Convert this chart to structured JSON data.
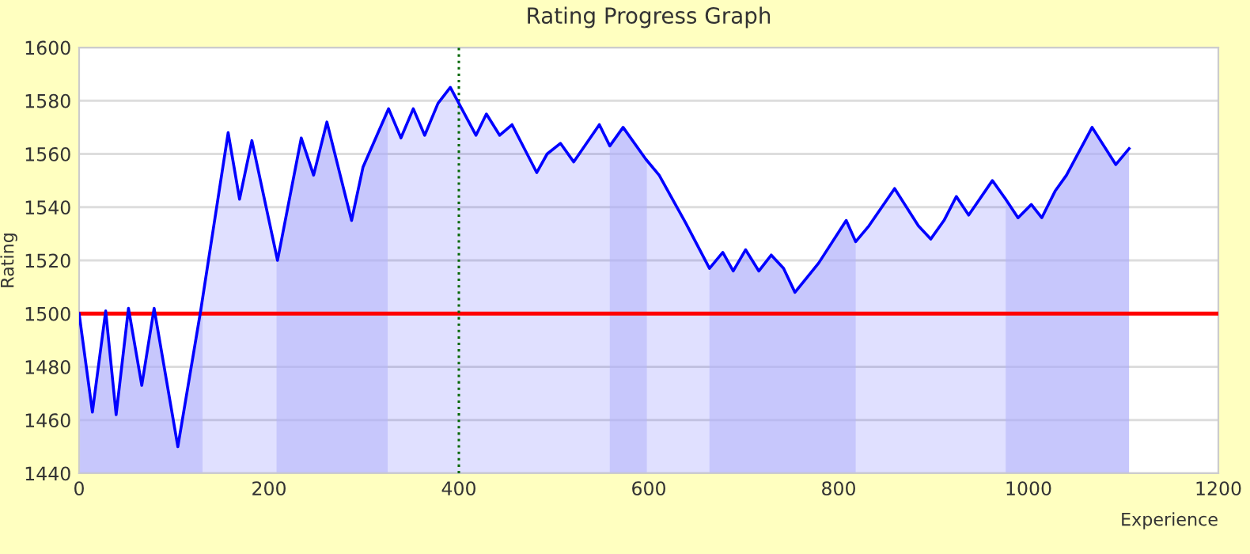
{
  "chart_data": {
    "type": "area",
    "title": "Rating Progress Graph",
    "xlabel": "Experience",
    "ylabel": "Rating",
    "series": [
      {
        "color": "#0000ff",
        "x": [
          0,
          14,
          28,
          39,
          52,
          66,
          79,
          104,
          128,
          157,
          169,
          182,
          209,
          234,
          247,
          261,
          287,
          299,
          326,
          339,
          352,
          364,
          378,
          391,
          418,
          429,
          443,
          456,
          482,
          493,
          507,
          521,
          548,
          559,
          573,
          597,
          611,
          639,
          664,
          678,
          689,
          702,
          716,
          729,
          742,
          754,
          779,
          808,
          818,
          832,
          859,
          884,
          897,
          911,
          924,
          937,
          962,
          976,
          989,
          1003,
          1014,
          1028,
          1040,
          1067,
          1092,
          1106
        ],
        "values": [
          1500,
          1463,
          1501,
          1462,
          1502,
          1473,
          1502,
          1450,
          1501,
          1568,
          1543,
          1565,
          1520,
          1566,
          1552,
          1572,
          1535,
          1555,
          1577,
          1566,
          1577,
          1567,
          1579,
          1585,
          1567,
          1575,
          1567,
          1571,
          1553,
          1560,
          1564,
          1557,
          1571,
          1563,
          1570,
          1558,
          1552,
          1534,
          1517,
          1523,
          1516,
          1524,
          1516,
          1522,
          1517,
          1508,
          1519,
          1535,
          1527,
          1533,
          1547,
          1533,
          1528,
          1535,
          1544,
          1537,
          1550,
          1543,
          1536,
          1541,
          1536,
          1546,
          1552,
          1570,
          1556,
          1562
        ]
      }
    ],
    "xlim": [
      0,
      1200
    ],
    "ylim": [
      1440,
      1600
    ],
    "xticks": [
      0,
      200,
      400,
      600,
      800,
      1000,
      1200
    ],
    "yticks": [
      1440,
      1460,
      1480,
      1500,
      1520,
      1540,
      1560,
      1580,
      1600
    ],
    "grid": "y",
    "legend": false,
    "ref_lines": [
      {
        "axis": "y",
        "value": 1500,
        "color": "#ff0000",
        "line_style": "solid"
      },
      {
        "axis": "x",
        "value": 400,
        "color": "#006600",
        "line_style": "dotted"
      }
    ],
    "bands": [
      {
        "axis": "x",
        "from": 0,
        "to": 130,
        "color": "#d0d0fa"
      },
      {
        "axis": "x",
        "from": 208,
        "to": 325,
        "color": "#d0d0fa"
      },
      {
        "axis": "x",
        "from": 559,
        "to": 598,
        "color": "#d0d0fa"
      },
      {
        "axis": "x",
        "from": 664,
        "to": 818,
        "color": "#d0d0fa"
      },
      {
        "axis": "x",
        "from": 976,
        "to": 1106,
        "color": "#d0d0fa"
      }
    ]
  }
}
